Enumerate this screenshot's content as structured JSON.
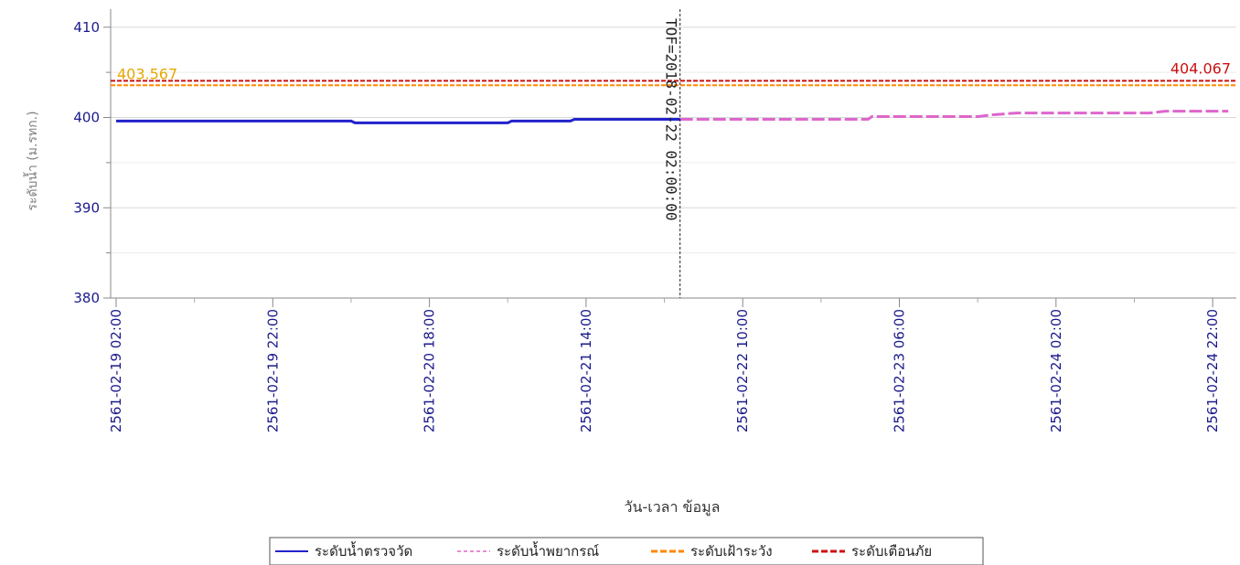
{
  "chart_data": {
    "type": "line",
    "xlabel": "วัน-เวลา ข้อมูล",
    "ylabel": "ระดับน้ำ (ม.รทก.)",
    "ylim": [
      380,
      412
    ],
    "yticks": [
      380,
      390,
      400,
      410
    ],
    "xlim": [
      "2561-02-19 02:00",
      "2561-02-25 00:00"
    ],
    "xticks": [
      "2561-02-19 02:00",
      "2561-02-19 22:00",
      "2561-02-20 18:00",
      "2561-02-21 14:00",
      "2561-02-22 10:00",
      "2561-02-23 06:00",
      "2561-02-24 02:00",
      "2561-02-24 22:00"
    ],
    "grid": true,
    "legend_position": "bottom",
    "series": [
      {
        "name": "ระดับน้ำตรวจวัด",
        "color": "#2222cc",
        "style": "solid",
        "points": [
          [
            "2561-02-19 02:00",
            399.6
          ],
          [
            "2561-02-20 08:00",
            399.6
          ],
          [
            "2561-02-20 08:30",
            399.4
          ],
          [
            "2561-02-21 04:00",
            399.4
          ],
          [
            "2561-02-21 04:30",
            399.6
          ],
          [
            "2561-02-21 12:00",
            399.6
          ],
          [
            "2561-02-21 12:30",
            399.8
          ],
          [
            "2561-02-22 02:00",
            399.8
          ]
        ]
      },
      {
        "name": "ระดับน้ำพยากรณ์",
        "color": "#dd66cc",
        "style": "dashed",
        "points": [
          [
            "2561-02-22 02:00",
            399.8
          ],
          [
            "2561-02-23 02:00",
            399.8
          ],
          [
            "2561-02-23 02:30",
            400.1
          ],
          [
            "2561-02-23 16:00",
            400.1
          ],
          [
            "2561-02-23 18:00",
            400.3
          ],
          [
            "2561-02-23 21:00",
            400.5
          ],
          [
            "2561-02-24 14:00",
            400.5
          ],
          [
            "2561-02-24 16:00",
            400.7
          ],
          [
            "2561-02-25 00:00",
            400.7
          ]
        ]
      },
      {
        "name": "ระดับเฝ้าระวัง",
        "color": "#ff8800",
        "style": "dashed",
        "value": 403.567,
        "value_label": "403.567"
      },
      {
        "name": "ระดับเตือนภัย",
        "color": "#cc1111",
        "style": "dashed",
        "value": 404.067,
        "value_label": "404.067"
      }
    ],
    "annotations": [
      {
        "type": "vline",
        "x": "2561-02-22 02:00",
        "text": "TOF=2018-02-22 02:00:00"
      }
    ]
  }
}
